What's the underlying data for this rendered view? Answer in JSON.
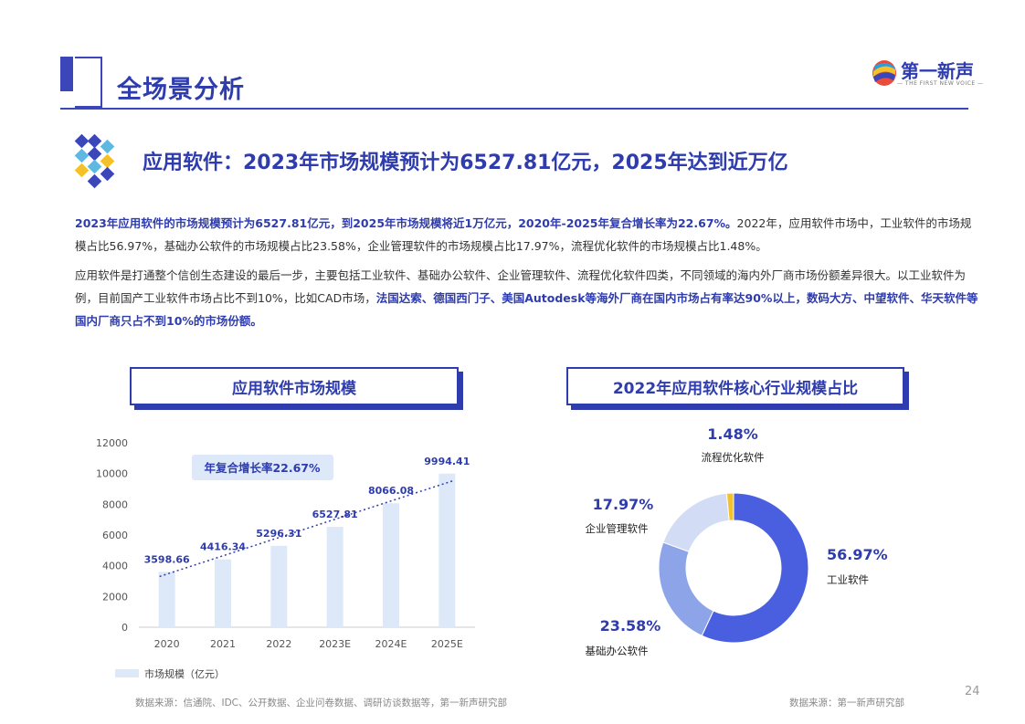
{
  "header": {
    "title": "全场景分析",
    "logo_name": "第一新声",
    "logo_tagline": "— THE FIRST NEW VOICE —"
  },
  "section": {
    "title": "应用软件：2023年市场规模预计为6527.81亿元，2025年达到近万亿"
  },
  "paragraphs": {
    "p1_hl": "2023年应用软件的市场规模预计为6527.81亿元，到2025年市场规模将近1万亿元，2020年-2025年复合增长率为22.67%。",
    "p1_rest": "2022年，应用软件市场中，工业软件的市场规模占比56.97%，基础办公软件的市场规模占比23.58%，企业管理软件的市场规模占比17.97%，流程优化软件的市场规模占比1.48%。",
    "p2_a": "应用软件是打通整个信创生态建设的最后一步，主要包括工业软件、基础办公软件、企业管理软件、流程优化软件四类，不同领域的海内外厂商市场份额差异很大。以工业软件为例，目前国产工业软件市场占比不到10%，比如CAD市场，",
    "p2_hl1": "法国达索、德国西门子、美国Autodesk等海外厂商在国内市场占有率达90%以上，",
    "p2_hl2": "数码大方、中望软件、华天软件等国内厂商只占不到10%的市场份额。"
  },
  "left_panel": {
    "title": "应用软件市场规模"
  },
  "right_panel": {
    "title": "2022年应用软件核心行业规模占比"
  },
  "chart_data": [
    {
      "type": "bar",
      "categories": [
        "2020",
        "2021",
        "2022",
        "2023E",
        "2024E",
        "2025E"
      ],
      "series": [
        {
          "name": "市场规模（亿元）",
          "values": [
            3598.66,
            4416.34,
            5296.31,
            6527.81,
            8066.08,
            9994.41
          ]
        }
      ],
      "value_labels": [
        "3598.66",
        "4416.34",
        "5296.31",
        "6527.81",
        "8066.08",
        "9994.41"
      ],
      "ylim": [
        0,
        12000
      ],
      "yticks": [
        "0",
        "2000",
        "4000",
        "6000",
        "8000",
        "10000",
        "12000"
      ],
      "annotation": "年复合增长率22.67%",
      "trendline": true,
      "bar_color": "#dde8f9",
      "trend_color": "#2e3cae"
    },
    {
      "type": "pie",
      "donut": true,
      "slices": [
        {
          "label": "工业软件",
          "value": 56.97,
          "pct_label": "56.97%",
          "color": "#4a5fe0"
        },
        {
          "label": "基础办公软件",
          "value": 23.58,
          "pct_label": "23.58%",
          "color": "#8ea4e8"
        },
        {
          "label": "企业管理软件",
          "value": 17.97,
          "pct_label": "17.97%",
          "color": "#d3dcf5"
        },
        {
          "label": "流程优化软件",
          "value": 1.48,
          "pct_label": "1.48%",
          "color": "#f4c12a"
        }
      ]
    }
  ],
  "footnotes": {
    "left": "数据来源：信通院、IDC、公开数据、企业问卷数据、调研访谈数据等，第一新声研究部",
    "right": "数据来源：第一新声研究部"
  },
  "page_number": "24"
}
